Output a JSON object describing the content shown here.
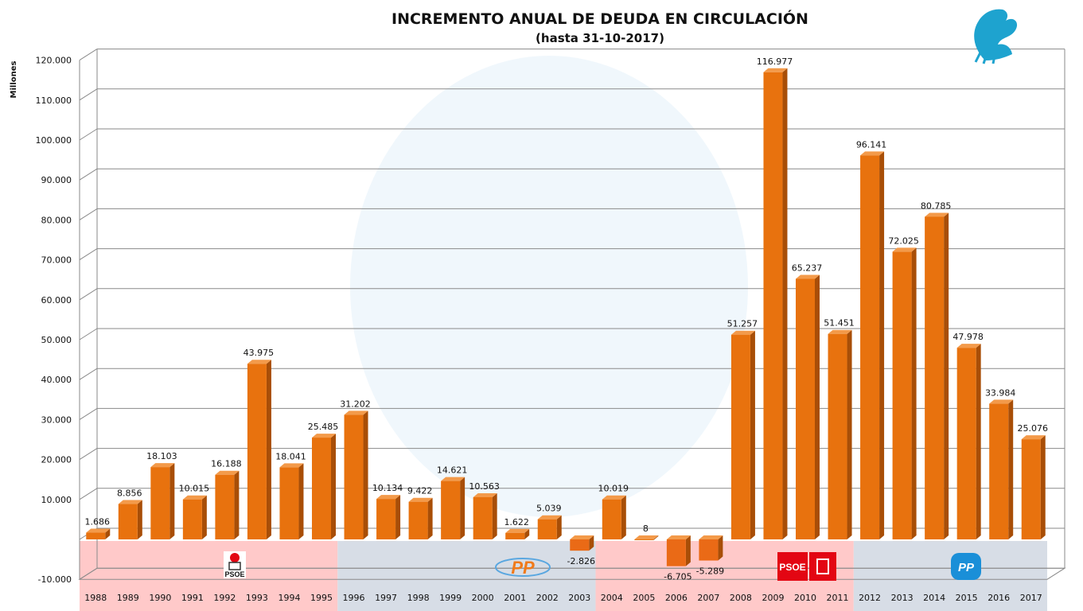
{
  "chart_data": {
    "type": "bar",
    "title": "INCREMENTO ANUAL DE DEUDA EN CIRCULACIÓN",
    "subtitle": "(hasta 31-10-2017)",
    "ylabel": "Millones",
    "ylim": [
      -10000,
      120000
    ],
    "yticks": [
      "-10.000",
      "10.000",
      "20.000",
      "30.000",
      "40.000",
      "50.000",
      "60.000",
      "70.000",
      "80.000",
      "90.000",
      "100.000",
      "110.000",
      "120.000"
    ],
    "ytick_values": [
      -10000,
      10000,
      20000,
      30000,
      40000,
      50000,
      60000,
      70000,
      80000,
      90000,
      100000,
      110000,
      120000
    ],
    "grid": true,
    "categories": [
      "1988",
      "1989",
      "1990",
      "1991",
      "1992",
      "1993",
      "1994",
      "1995",
      "1996",
      "1997",
      "1998",
      "1999",
      "2000",
      "2001",
      "2002",
      "2003",
      "2004",
      "2005",
      "2006",
      "2007",
      "2008",
      "2009",
      "2010",
      "2011",
      "2012",
      "2013",
      "2014",
      "2015",
      "2016",
      "2017"
    ],
    "values": [
      1686,
      8856,
      18103,
      10015,
      16188,
      43975,
      18041,
      25485,
      31202,
      10134,
      9422,
      14621,
      10563,
      1622,
      5039,
      -2826,
      10019,
      8,
      -6705,
      -5289,
      51257,
      116977,
      65237,
      51451,
      96141,
      72025,
      80785,
      47978,
      33984,
      25076
    ],
    "data_labels": [
      "1.686",
      "8.856",
      "18.103",
      "10.015",
      "16.188",
      "43.975",
      "18.041",
      "25.485",
      "31.202",
      "10.134",
      "9.422",
      "14.621",
      "10.563",
      "1.622",
      "5.039",
      "-2.826",
      "10.019",
      "8",
      "-6.705",
      "-5.289",
      "51.257",
      "116.977",
      "65.237",
      "51.451",
      "96.141",
      "72.025",
      "80.785",
      "47.978",
      "33.984",
      "25.076"
    ],
    "bar_color": "#e8720e",
    "periods": [
      {
        "party": "PSOE",
        "from": 0,
        "to": 7,
        "color": "#ffc9c9"
      },
      {
        "party": "PP",
        "from": 8,
        "to": 15,
        "color": "#d7dde6"
      },
      {
        "party": "PSOE",
        "from": 16,
        "to": 23,
        "color": "#ffc9c9"
      },
      {
        "party": "PP",
        "from": 24,
        "to": 29,
        "color": "#d7dde6"
      }
    ]
  },
  "logos": {
    "psoe": "PSOE",
    "pp": "PP"
  }
}
